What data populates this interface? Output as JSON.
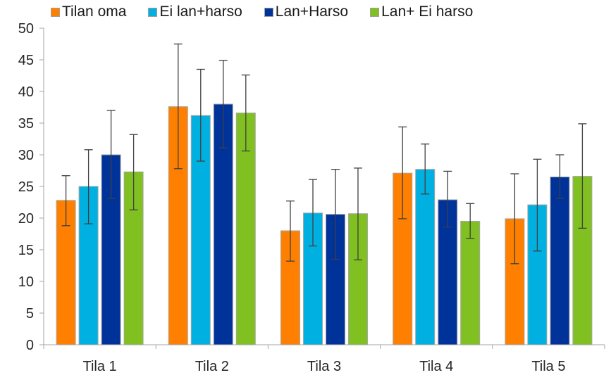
{
  "chart_data": {
    "type": "bar",
    "categories": [
      "Tila 1",
      "Tila 2",
      "Tila 3",
      "Tila 4",
      "Tila 5"
    ],
    "series": [
      {
        "name": "Tilan oma",
        "color": "#ff8000",
        "values": [
          22.8,
          37.6,
          18.0,
          27.1,
          19.9
        ],
        "error_low": [
          18.8,
          27.8,
          13.2,
          19.9,
          12.8
        ],
        "error_high": [
          26.7,
          47.5,
          22.7,
          34.4,
          27.0
        ]
      },
      {
        "name": "Ei lan+harso",
        "color": "#00b0e0",
        "values": [
          25.0,
          36.2,
          20.8,
          27.7,
          22.1
        ],
        "error_low": [
          19.1,
          29.0,
          15.6,
          23.8,
          14.8
        ],
        "error_high": [
          30.8,
          43.5,
          26.1,
          31.7,
          29.3
        ]
      },
      {
        "name": "Lan+Harso",
        "color": "#003399",
        "values": [
          30.0,
          38.0,
          20.6,
          22.9,
          26.5
        ],
        "error_low": [
          23.1,
          31.1,
          13.5,
          18.6,
          23.1
        ],
        "error_high": [
          37.0,
          44.9,
          27.7,
          27.4,
          30.0
        ]
      },
      {
        "name": "Lan+ Ei harso",
        "color": "#80c020",
        "values": [
          27.3,
          36.6,
          20.7,
          19.5,
          26.6
        ],
        "error_low": [
          21.3,
          30.6,
          13.4,
          16.8,
          18.4
        ],
        "error_high": [
          33.2,
          42.6,
          27.9,
          22.3,
          34.9
        ]
      }
    ],
    "ylim": [
      0,
      50
    ],
    "yticks": [
      0,
      5,
      10,
      15,
      20,
      25,
      30,
      35,
      40,
      45,
      50
    ],
    "grid": false,
    "legend_position": "top"
  }
}
